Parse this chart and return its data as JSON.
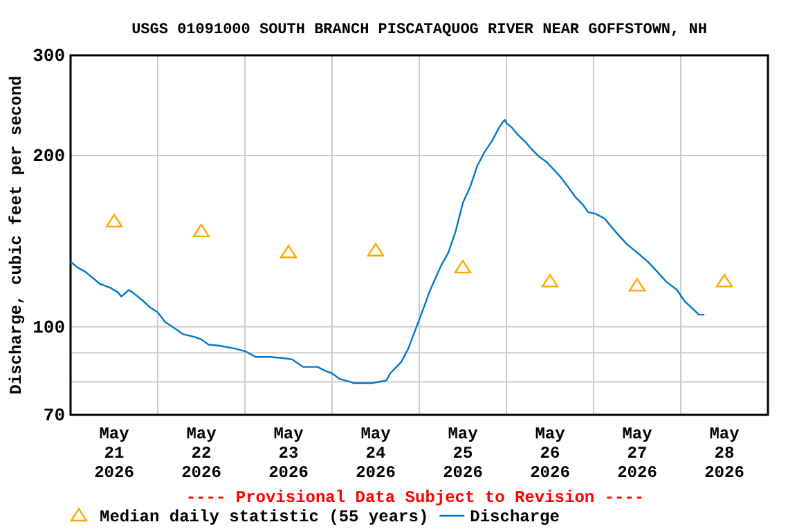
{
  "chart_data": {
    "type": "line",
    "title": "USGS 01091000 SOUTH BRANCH PISCATAQUOG RIVER NEAR GOFFSTOWN, NH",
    "ylabel": "Discharge, cubic feet per second",
    "log": "y",
    "grid": true,
    "legend": "bottom",
    "annotations": [
      "---- Provisional Data Subject to Revision ----"
    ],
    "xlim": [
      "2026-05-21T00:00",
      "2026-05-29T00:00"
    ],
    "xticks": [
      {
        "value": "2026-05-21T12:00",
        "label": "May\n21\n2026"
      },
      {
        "value": "2026-05-22T12:00",
        "label": "May\n22\n2026"
      },
      {
        "value": "2026-05-23T12:00",
        "label": "May\n23\n2026"
      },
      {
        "value": "2026-05-24T12:00",
        "label": "May\n24\n2026"
      },
      {
        "value": "2026-05-25T12:00",
        "label": "May\n25\n2026"
      },
      {
        "value": "2026-05-26T12:00",
        "label": "May\n26\n2026"
      },
      {
        "value": "2026-05-27T12:00",
        "label": "May\n27\n2026"
      },
      {
        "value": "2026-05-28T12:00",
        "label": "May\n28\n2026"
      },
      {
        "value": "2026-05-22T00:00",
        "label": null
      },
      {
        "value": "2026-05-23T00:00",
        "label": null
      },
      {
        "value": "2026-05-24T00:00",
        "label": null
      },
      {
        "value": "2026-05-25T00:00",
        "label": null
      },
      {
        "value": "2026-05-26T00:00",
        "label": null
      },
      {
        "value": "2026-05-27T00:00",
        "label": null
      },
      {
        "value": "2026-05-28T00:00",
        "label": null
      }
    ],
    "ylim": [
      70,
      300
    ],
    "yticks": [
      70,
      {
        "value": 80,
        "label": null
      },
      {
        "value": 90,
        "label": null
      },
      100,
      200,
      300
    ],
    "series": [
      {
        "name": "Median daily statistic (55 years)",
        "type": "scatter",
        "marker": "triangle",
        "color": "#ffa500",
        "x": [
          "2026-05-21T12:00",
          "2026-05-22T12:00",
          "2026-05-23T12:00",
          "2026-05-24T12:00",
          "2026-05-25T12:00",
          "2026-05-26T12:00",
          "2026-05-27T12:00",
          "2026-05-28T12:00"
        ],
        "values": [
          153,
          147,
          135,
          136,
          127,
          120,
          118,
          120
        ]
      },
      {
        "name": "Discharge",
        "type": "line",
        "color": "#0077cc",
        "x": [
          "2026-05-21T00:00",
          "2026-05-21T02:00",
          "2026-05-21T04:00",
          "2026-05-21T06:00",
          "2026-05-21T08:00",
          "2026-05-21T11:00",
          "2026-05-21T13:00",
          "2026-05-21T14:00",
          "2026-05-21T16:00",
          "2026-05-21T17:00",
          "2026-05-21T20:00",
          "2026-05-21T22:00",
          "2026-05-22T00:00",
          "2026-05-22T02:00",
          "2026-05-22T04:00",
          "2026-05-22T07:00",
          "2026-05-22T10:00",
          "2026-05-22T12:00",
          "2026-05-22T14:00",
          "2026-05-22T17:00",
          "2026-05-22T21:00",
          "2026-05-23T00:00",
          "2026-05-23T03:00",
          "2026-05-23T07:00",
          "2026-05-23T11:00",
          "2026-05-23T13:00",
          "2026-05-23T16:00",
          "2026-05-23T18:00",
          "2026-05-23T20:00",
          "2026-05-23T22:00",
          "2026-05-24T00:00",
          "2026-05-24T02:00",
          "2026-05-24T05:00",
          "2026-05-24T06:00",
          "2026-05-24T08:00",
          "2026-05-24T11:00",
          "2026-05-24T13:00",
          "2026-05-24T15:00",
          "2026-05-24T16:00",
          "2026-05-24T19:00",
          "2026-05-24T21:00",
          "2026-05-24T23:00",
          "2026-05-25T01:00",
          "2026-05-25T03:00",
          "2026-05-25T06:00",
          "2026-05-25T08:00",
          "2026-05-25T10:00",
          "2026-05-25T12:00",
          "2026-05-25T14:00",
          "2026-05-25T16:00",
          "2026-05-25T18:00",
          "2026-05-25T20:00",
          "2026-05-25T22:00",
          "2026-05-25T23:00",
          "2026-05-25T23:36",
          "2026-05-26T00:00",
          "2026-05-26T01:30",
          "2026-05-26T03:00",
          "2026-05-26T05:00",
          "2026-05-26T07:00",
          "2026-05-26T09:00",
          "2026-05-26T11:00",
          "2026-05-26T13:00",
          "2026-05-26T15:00",
          "2026-05-26T17:00",
          "2026-05-26T19:00",
          "2026-05-26T21:00",
          "2026-05-26T22:30",
          "2026-05-27T00:30",
          "2026-05-27T03:00",
          "2026-05-27T06:00",
          "2026-05-27T09:00",
          "2026-05-27T12:00",
          "2026-05-27T15:00",
          "2026-05-27T17:30",
          "2026-05-27T20:00",
          "2026-05-27T23:00",
          "2026-05-28T01:00",
          "2026-05-28T03:00",
          "2026-05-28T05:00",
          "2026-05-28T06:30"
        ],
        "values": [
          130,
          127,
          125,
          122,
          119,
          117,
          115,
          113,
          116,
          115,
          111,
          108,
          106,
          102,
          100,
          97,
          96,
          95,
          93,
          92.6,
          91.6,
          90.6,
          88.5,
          88.5,
          88,
          87.6,
          85,
          85,
          85,
          83.7,
          82.8,
          81,
          80,
          79.6,
          79.6,
          79.6,
          80,
          80.5,
          82.8,
          86.6,
          91.6,
          99,
          107,
          116,
          128,
          135,
          147,
          165,
          176,
          192,
          203,
          212,
          224,
          229,
          231,
          228,
          224,
          218,
          212,
          205,
          199,
          195,
          189,
          183,
          176,
          169,
          164,
          159,
          158,
          155,
          147,
          140,
          135,
          130,
          125,
          120,
          116,
          111,
          108,
          105,
          105
        ]
      }
    ]
  }
}
